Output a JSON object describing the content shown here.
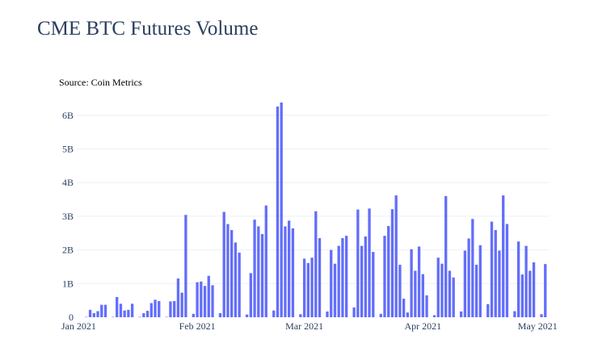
{
  "chart_data": {
    "type": "bar",
    "title": "CME BTC Futures Volume",
    "annotation": "Source: Coin Metrics",
    "xlabel": "",
    "ylabel": "",
    "bar_color": "#636efa",
    "grid": true,
    "x_ticks": [
      {
        "date": "2021-01-01",
        "label": "Jan 2021"
      },
      {
        "date": "2021-02-01",
        "label": "Feb 2021"
      },
      {
        "date": "2021-03-01",
        "label": "Mar 2021"
      },
      {
        "date": "2021-04-01",
        "label": "Apr 2021"
      },
      {
        "date": "2021-05-01",
        "label": "May 2021"
      }
    ],
    "y_ticks": [
      {
        "value": 0,
        "label": "0"
      },
      {
        "value": 1000000000,
        "label": "1B"
      },
      {
        "value": 2000000000,
        "label": "2B"
      },
      {
        "value": 3000000000,
        "label": "3B"
      },
      {
        "value": 4000000000,
        "label": "4B"
      },
      {
        "value": 5000000000,
        "label": "5B"
      },
      {
        "value": 6000000000,
        "label": "6B"
      }
    ],
    "xlim": [
      "2020-12-31T12:00",
      "2021-05-04T00:00"
    ],
    "ylim": [
      0,
      6500000000
    ],
    "x": [
      "2021-01-03",
      "2021-01-04",
      "2021-01-05",
      "2021-01-06",
      "2021-01-07",
      "2021-01-08",
      "2021-01-10",
      "2021-01-11",
      "2021-01-12",
      "2021-01-13",
      "2021-01-14",
      "2021-01-15",
      "2021-01-17",
      "2021-01-18",
      "2021-01-19",
      "2021-01-20",
      "2021-01-21",
      "2021-01-22",
      "2021-01-24",
      "2021-01-25",
      "2021-01-26",
      "2021-01-27",
      "2021-01-28",
      "2021-01-29",
      "2021-01-31",
      "2021-02-01",
      "2021-02-02",
      "2021-02-03",
      "2021-02-04",
      "2021-02-05",
      "2021-02-07",
      "2021-02-08",
      "2021-02-09",
      "2021-02-10",
      "2021-02-11",
      "2021-02-12",
      "2021-02-14",
      "2021-02-15",
      "2021-02-16",
      "2021-02-17",
      "2021-02-18",
      "2021-02-19",
      "2021-02-21",
      "2021-02-22",
      "2021-02-23",
      "2021-02-24",
      "2021-02-25",
      "2021-02-26",
      "2021-02-28",
      "2021-03-01",
      "2021-03-02",
      "2021-03-03",
      "2021-03-04",
      "2021-03-05",
      "2021-03-07",
      "2021-03-08",
      "2021-03-09",
      "2021-03-10",
      "2021-03-11",
      "2021-03-12",
      "2021-03-14",
      "2021-03-15",
      "2021-03-16",
      "2021-03-17",
      "2021-03-18",
      "2021-03-19",
      "2021-03-21",
      "2021-03-22",
      "2021-03-23",
      "2021-03-24",
      "2021-03-25",
      "2021-03-26",
      "2021-03-27",
      "2021-03-28",
      "2021-03-29",
      "2021-03-30",
      "2021-03-31",
      "2021-04-01",
      "2021-04-02",
      "2021-04-04",
      "2021-04-05",
      "2021-04-06",
      "2021-04-07",
      "2021-04-08",
      "2021-04-09",
      "2021-04-11",
      "2021-04-12",
      "2021-04-13",
      "2021-04-14",
      "2021-04-15",
      "2021-04-16",
      "2021-04-18",
      "2021-04-19",
      "2021-04-20",
      "2021-04-21",
      "2021-04-22",
      "2021-04-23",
      "2021-04-25",
      "2021-04-26",
      "2021-04-27",
      "2021-04-28",
      "2021-04-29",
      "2021-04-30",
      "2021-05-02",
      "2021-05-03"
    ],
    "values": [
      10000000,
      220000000,
      120000000,
      180000000,
      370000000,
      370000000,
      10000000,
      600000000,
      400000000,
      200000000,
      220000000,
      400000000,
      10000000,
      120000000,
      190000000,
      420000000,
      520000000,
      480000000,
      10000000,
      470000000,
      480000000,
      1150000000,
      730000000,
      3040000000,
      100000000,
      1040000000,
      1060000000,
      930000000,
      1230000000,
      950000000,
      120000000,
      3130000000,
      2770000000,
      2590000000,
      2220000000,
      1920000000,
      80000000,
      1310000000,
      2900000000,
      2700000000,
      2470000000,
      3320000000,
      200000000,
      6260000000,
      6380000000,
      2700000000,
      2870000000,
      2640000000,
      90000000,
      1740000000,
      1610000000,
      1770000000,
      3150000000,
      2350000000,
      170000000,
      2000000000,
      1590000000,
      2120000000,
      2350000000,
      2420000000,
      290000000,
      3200000000,
      2120000000,
      2400000000,
      3230000000,
      1940000000,
      100000000,
      2420000000,
      2710000000,
      3210000000,
      3620000000,
      1560000000,
      550000000,
      140000000,
      2020000000,
      1380000000,
      2100000000,
      1280000000,
      650000000,
      60000000,
      1770000000,
      1590000000,
      3600000000,
      1380000000,
      1180000000,
      170000000,
      1980000000,
      2340000000,
      2920000000,
      1560000000,
      2140000000,
      390000000,
      2840000000,
      2590000000,
      1980000000,
      3620000000,
      2770000000,
      180000000,
      2250000000,
      1270000000,
      2120000000,
      1380000000,
      1630000000,
      90000000,
      1580000000
    ]
  }
}
